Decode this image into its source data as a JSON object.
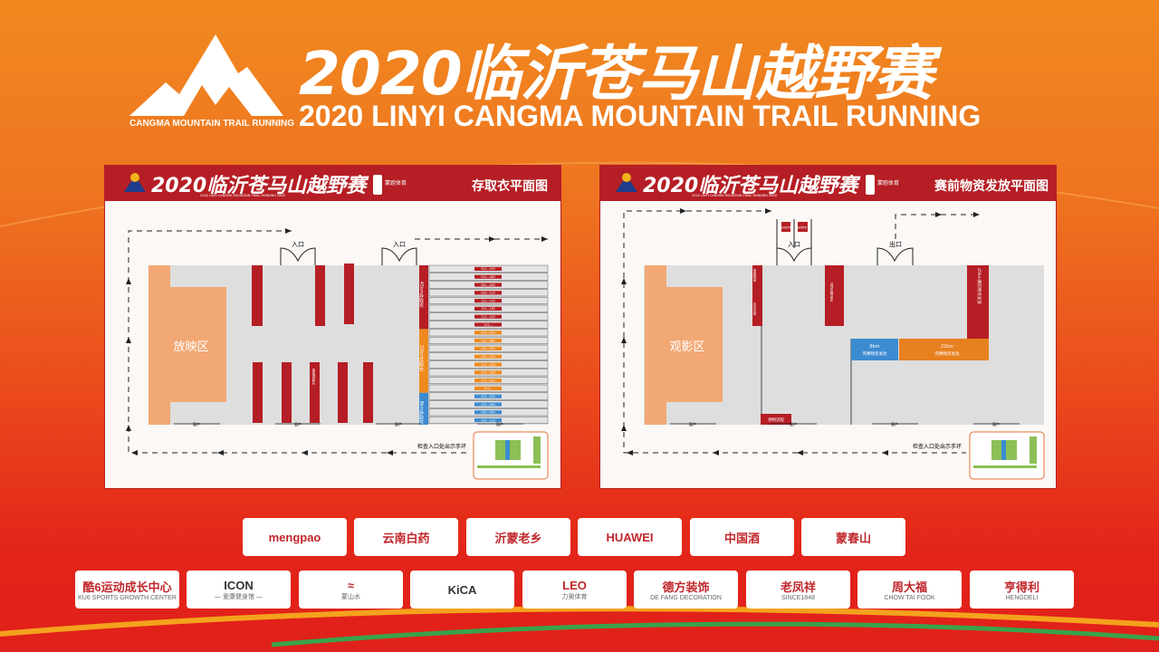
{
  "header": {
    "title": "2020临沂苍马山越野赛",
    "subtitle": "2020 LINYI CANGMA MOUNTAIN TRAIL RUNNING",
    "logo_text": "CANGMA MOUNTAIN TRAIL RUNNING"
  },
  "colors": {
    "red": "#b51e24",
    "orange": "#ee8a1f",
    "blue": "#3c8bd1",
    "peach": "#f2a874",
    "hall": "#dedede"
  },
  "panel_common": {
    "banner_title": "2020临沂苍马山越野赛",
    "banner_sub": "2020 LINYI CANGMA MOUNTAIN TRAIL RUNNING RACE",
    "banner_seal": "蒙跑",
    "banner_org": "蒙跑体育",
    "window": "窗户",
    "check_note": "检查入口处出示手环"
  },
  "left_panel": {
    "title": "存取衣平面图",
    "screen_area": "放映区",
    "entrance": "入口",
    "bar_label": "家属观影区",
    "groups": [
      {
        "label": "45km存取衣",
        "rows": [
          "001—030",
          "031—060",
          "061—090",
          "091—120",
          "121—150",
          "151—180",
          "211—240",
          "241—"
        ]
      },
      {
        "label": "22km存取衣",
        "rows": [
          "001—030",
          "031—060",
          "061—090",
          "091—120",
          "121—150",
          "151—180",
          "211—240",
          "241—"
        ]
      },
      {
        "label": "8km存取衣",
        "rows": [
          "001—030",
          "031—060",
          "061—090",
          "091—120"
        ]
      }
    ]
  },
  "right_panel": {
    "title": "赛前物资发放平面图",
    "screen_area": "观影区",
    "entrance": "入口",
    "exit": "出口",
    "check1": "疫情检测",
    "check2": "疫情检测",
    "info": "信息核录",
    "band": "手环发放",
    "activity": "活动及物品区",
    "flow": "领物流程",
    "s45": "45km赛前物资发放",
    "s8_km": "8km",
    "s8": "完赛物资发放",
    "s22_km": "22km",
    "s22": "完赛物资发放"
  },
  "sponsors_row1": [
    {
      "name": "mengpao"
    },
    {
      "name": "云南白药"
    },
    {
      "name": "沂蒙老乡"
    },
    {
      "name": "HUAWEI"
    },
    {
      "name": "中国酒"
    },
    {
      "name": "蒙春山"
    }
  ],
  "sponsors_row2": [
    {
      "name": "酷6运动成长中心",
      "sub": "KU6 SPORTS GROWTH CENTER"
    },
    {
      "name": "ICON",
      "sub": "— 爱康健身馆 —"
    },
    {
      "name": "≈",
      "sub": "蒙山水"
    },
    {
      "name": "KiCA"
    },
    {
      "name": "LEO",
      "sub": "力奥体育"
    },
    {
      "name": "德方装饰",
      "sub": "DE FANG DECORATION"
    },
    {
      "name": "老凤祥",
      "sub": "SINCE1848"
    },
    {
      "name": "周大福",
      "sub": "CHOW TAI FOOK"
    },
    {
      "name": "亨得利",
      "sub": "HENGDELI"
    }
  ]
}
